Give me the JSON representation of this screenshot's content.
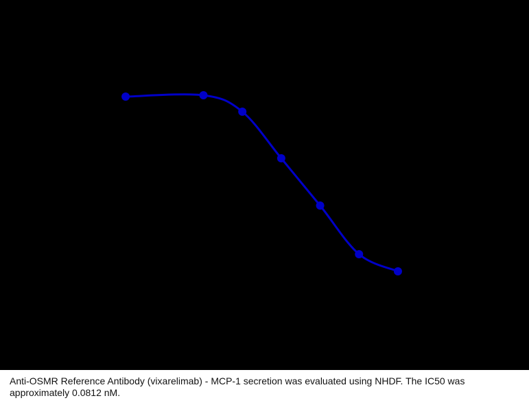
{
  "chart_data": {
    "type": "scatter",
    "color": "#0000c8",
    "fit_line": true,
    "x": [
      0,
      2,
      3,
      4,
      5,
      6,
      7
    ],
    "values": [
      399,
      401,
      377,
      309,
      240,
      169,
      144
    ],
    "xlim": [
      -3.23,
      10.37
    ],
    "ylim": [
      0,
      500
    ]
  },
  "caption": "Anti-OSMR Reference Antibody (vixarelimab) - MCP-1 secretion was evaluated using NHDF. The IC50 was approximately 0.0812 nM."
}
